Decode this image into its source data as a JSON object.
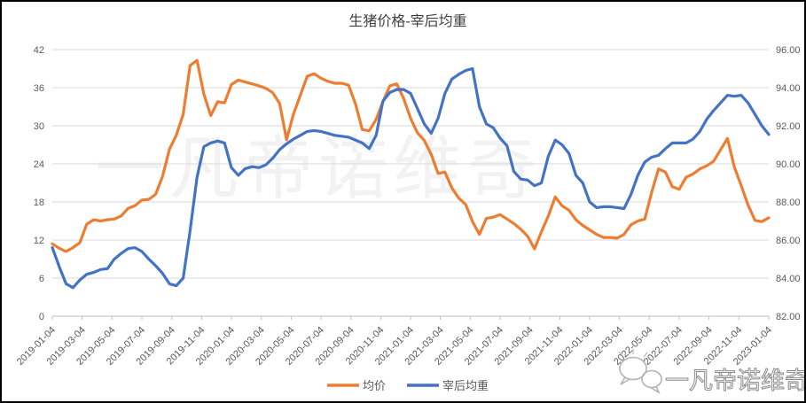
{
  "title": "生猪价格-宰后均重",
  "legend": {
    "items": [
      {
        "label": "均价",
        "color": "#ED7D31"
      },
      {
        "label": "宰后均重",
        "color": "#4472C4"
      }
    ]
  },
  "watermarks": {
    "center": "一凡帝诺维奇",
    "bottom_right": "一凡帝诺维奇",
    "bottom_right_icon": "wechat-chat-bubbles-icon"
  },
  "colors": {
    "grid": "#D9D9D9",
    "axis": "#BFBFBF",
    "tick_text": "#595959",
    "title_text": "#404040",
    "background": "#FFFFFF",
    "center_watermark": "#F2F2F2",
    "bottom_right_watermark": "#8C8C8C"
  },
  "chart_data": {
    "type": "line",
    "title": "生猪价格-宰后均重",
    "grid": true,
    "legend_position": "bottom",
    "x_sampling": "biweekly samples from 2019-01-04 to 2023-01-04",
    "x_tick_labels": [
      "2019-01-04",
      "2019-03-04",
      "2019-05-04",
      "2019-07-04",
      "2019-09-04",
      "2019-11-04",
      "2020-01-04",
      "2020-03-04",
      "2020-05-04",
      "2020-07-04",
      "2020-09-04",
      "2020-11-04",
      "2021-01-04",
      "2021-03-04",
      "2021-05-04",
      "2021-07-04",
      "2021-09-04",
      "2021-11-04",
      "2022-01-04",
      "2022-03-04",
      "2022-05-04",
      "2022-07-04",
      "2022-09-04",
      "2022-11-04",
      "2023-01-04"
    ],
    "left_axis": {
      "min": 0,
      "max": 42,
      "ticks": [
        0,
        6,
        12,
        18,
        24,
        30,
        36,
        42
      ],
      "series": "均价"
    },
    "right_axis": {
      "min": 82,
      "max": 96,
      "tick_labels": [
        "82.00",
        "84.00",
        "86.00",
        "88.00",
        "90.00",
        "92.00",
        "94.00",
        "96.00"
      ],
      "series": "宰后均重"
    },
    "series": [
      {
        "name": "均价",
        "axis": "left",
        "color": "#ED7D31",
        "values": [
          11.4,
          10.7,
          10.2,
          10.8,
          11.6,
          14.5,
          15.2,
          15.0,
          15.2,
          15.3,
          15.8,
          17.0,
          17.4,
          18.3,
          18.4,
          19.2,
          22.0,
          26.3,
          28.5,
          31.8,
          39.5,
          40.3,
          35.0,
          31.6,
          33.8,
          33.6,
          36.5,
          37.2,
          36.9,
          36.6,
          36.3,
          35.9,
          35.2,
          33.5,
          27.8,
          31.8,
          34.8,
          37.8,
          38.2,
          37.5,
          37.0,
          36.7,
          36.7,
          36.4,
          33.5,
          29.4,
          29.2,
          31.0,
          33.8,
          36.3,
          36.6,
          34.3,
          31.2,
          28.9,
          27.7,
          25.5,
          22.5,
          22.7,
          20.2,
          18.6,
          17.6,
          14.9,
          12.9,
          15.4,
          15.6,
          16.0,
          15.3,
          14.6,
          13.7,
          12.6,
          10.6,
          13.3,
          15.8,
          18.8,
          17.4,
          16.7,
          15.2,
          14.3,
          13.6,
          12.9,
          12.4,
          12.4,
          12.3,
          12.9,
          14.4,
          15.0,
          15.3,
          19.5,
          23.2,
          22.7,
          20.4,
          20.0,
          21.9,
          22.4,
          23.2,
          23.7,
          24.4,
          26.2,
          28.0,
          23.5,
          20.6,
          17.5,
          15.1,
          14.9,
          15.5
        ]
      },
      {
        "name": "宰后均重",
        "axis": "right",
        "color": "#4472C4",
        "values": [
          85.6,
          84.6,
          83.7,
          83.5,
          83.9,
          84.2,
          84.3,
          84.45,
          84.5,
          85.0,
          85.3,
          85.55,
          85.6,
          85.4,
          85.0,
          84.65,
          84.25,
          83.7,
          83.6,
          84.0,
          86.5,
          89.3,
          90.9,
          91.1,
          91.2,
          91.1,
          89.8,
          89.4,
          89.75,
          89.85,
          89.8,
          89.95,
          90.3,
          90.75,
          91.05,
          91.3,
          91.5,
          91.7,
          91.75,
          91.7,
          91.6,
          91.5,
          91.45,
          91.4,
          91.25,
          91.1,
          90.8,
          91.5,
          93.3,
          93.75,
          93.9,
          93.9,
          93.7,
          92.9,
          92.1,
          91.6,
          92.4,
          93.7,
          94.45,
          94.7,
          94.9,
          95.0,
          93.0,
          92.1,
          91.9,
          91.35,
          90.95,
          89.6,
          89.2,
          89.15,
          88.85,
          89.0,
          90.4,
          91.25,
          91.0,
          90.55,
          89.4,
          89.0,
          88.0,
          87.7,
          87.75,
          87.75,
          87.7,
          87.65,
          88.4,
          89.4,
          90.1,
          90.35,
          90.45,
          90.8,
          91.1,
          91.1,
          91.1,
          91.3,
          91.7,
          92.35,
          92.8,
          93.2,
          93.6,
          93.55,
          93.6,
          93.2,
          92.6,
          92.0,
          91.55
        ]
      }
    ]
  }
}
